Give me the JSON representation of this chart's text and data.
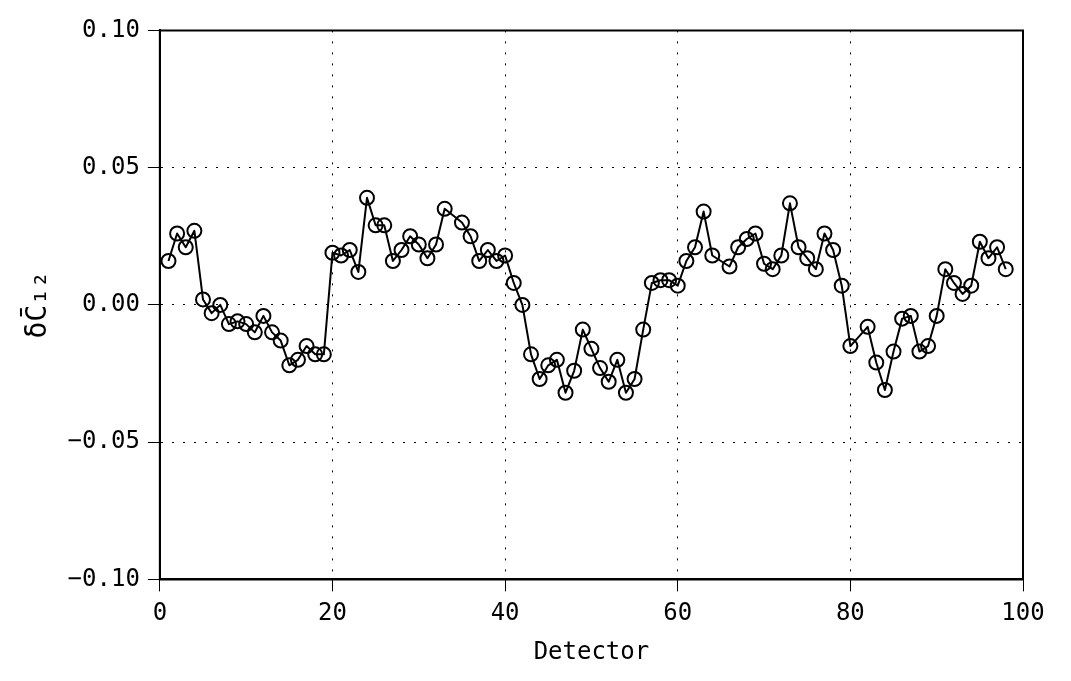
{
  "chart_data": {
    "type": "line",
    "xlabel": "Detector",
    "ylabel": "δC̄₁₂",
    "x": [
      1,
      2,
      3,
      4,
      5,
      6,
      7,
      8,
      9,
      10,
      11,
      12,
      13,
      14,
      15,
      16,
      17,
      18,
      19,
      20,
      21,
      22,
      23,
      24,
      25,
      26,
      27,
      28,
      29,
      30,
      31,
      32,
      33,
      35,
      36,
      37,
      38,
      39,
      40,
      41,
      42,
      43,
      44,
      45,
      46,
      47,
      48,
      49,
      50,
      51,
      52,
      53,
      54,
      55,
      56,
      57,
      58,
      59,
      60,
      61,
      62,
      63,
      64,
      66,
      67,
      68,
      69,
      70,
      71,
      72,
      73,
      74,
      75,
      76,
      77,
      78,
      79,
      80,
      82,
      83,
      84,
      85,
      86,
      87,
      88,
      89,
      90,
      91,
      92,
      93,
      94,
      95,
      96,
      97,
      98
    ],
    "series": [
      {
        "color": "#000000",
        "values": [
          0.016,
          0.026,
          0.021,
          0.027,
          0.002,
          -0.003,
          0.0,
          -0.007,
          -0.006,
          -0.007,
          -0.01,
          -0.004,
          -0.01,
          -0.013,
          -0.022,
          -0.02,
          -0.015,
          -0.018,
          -0.018,
          0.019,
          0.018,
          0.02,
          0.012,
          0.039,
          0.029,
          0.029,
          0.016,
          0.02,
          0.025,
          0.022,
          0.017,
          0.022,
          0.035,
          0.03,
          0.025,
          0.016,
          0.02,
          0.016,
          0.018,
          0.008,
          0.0,
          -0.018,
          -0.027,
          -0.022,
          -0.02,
          -0.032,
          -0.024,
          -0.009,
          -0.016,
          -0.023,
          -0.028,
          -0.02,
          -0.032,
          -0.027,
          -0.009,
          0.008,
          0.009,
          0.009,
          0.007,
          0.016,
          0.021,
          0.034,
          0.018,
          0.014,
          0.021,
          0.024,
          0.026,
          0.015,
          0.013,
          0.018,
          0.037,
          0.021,
          0.017,
          0.013,
          0.026,
          0.02,
          0.007,
          -0.015,
          -0.008,
          -0.021,
          -0.031,
          -0.017,
          -0.005,
          -0.004,
          -0.017,
          -0.015,
          -0.004,
          0.013,
          0.008,
          0.004,
          0.007,
          0.023,
          0.017,
          0.021,
          0.013
        ]
      }
    ],
    "xlim": [
      0,
      100
    ],
    "xticks": [
      0,
      20,
      40,
      60,
      80,
      100
    ],
    "ylim": [
      -0.1,
      0.1
    ],
    "yticks": [
      {
        "value": -0.1,
        "label": "−0.10"
      },
      {
        "value": -0.05,
        "label": "−0.05"
      },
      {
        "value": 0,
        "label": "0.00"
      },
      {
        "value": 0.05,
        "label": "0.05"
      },
      {
        "value": 0.1,
        "label": "0.10"
      }
    ],
    "grid": true,
    "legend": false,
    "marker": "circle",
    "line_style": "solid"
  }
}
